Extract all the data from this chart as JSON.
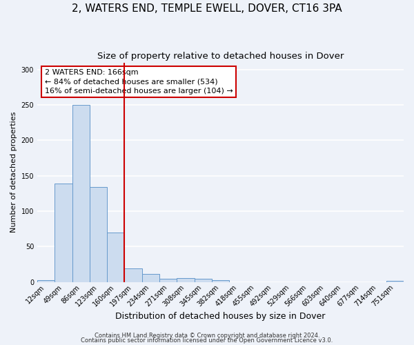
{
  "title": "2, WATERS END, TEMPLE EWELL, DOVER, CT16 3PA",
  "subtitle": "Size of property relative to detached houses in Dover",
  "xlabel": "Distribution of detached houses by size in Dover",
  "ylabel": "Number of detached properties",
  "bin_labels": [
    "12sqm",
    "49sqm",
    "86sqm",
    "123sqm",
    "160sqm",
    "197sqm",
    "234sqm",
    "271sqm",
    "308sqm",
    "345sqm",
    "382sqm",
    "418sqm",
    "455sqm",
    "492sqm",
    "529sqm",
    "566sqm",
    "603sqm",
    "640sqm",
    "677sqm",
    "714sqm",
    "751sqm"
  ],
  "bar_values": [
    3,
    139,
    250,
    134,
    70,
    19,
    11,
    5,
    6,
    5,
    3,
    0,
    0,
    0,
    0,
    0,
    0,
    0,
    0,
    0,
    2
  ],
  "bar_color": "#ccdcef",
  "bar_edgecolor": "#6699cc",
  "vline_color": "#cc0000",
  "vline_x_data": 4.5,
  "annotation_line1": "2 WATERS END: 166sqm",
  "annotation_line2": "← 84% of detached houses are smaller (534)",
  "annotation_line3": "16% of semi-detached houses are larger (104) →",
  "annotation_box_edgecolor": "#cc0000",
  "annotation_box_facecolor": "white",
  "ylim": [
    0,
    310
  ],
  "yticks": [
    0,
    50,
    100,
    150,
    200,
    250,
    300
  ],
  "footer1": "Contains HM Land Registry data © Crown copyright and database right 2024.",
  "footer2": "Contains public sector information licensed under the Open Government Licence v3.0.",
  "background_color": "#eef2f9",
  "grid_color": "#ffffff",
  "title_fontsize": 11,
  "subtitle_fontsize": 9.5,
  "xlabel_fontsize": 9,
  "ylabel_fontsize": 8,
  "tick_fontsize": 7,
  "annotation_fontsize": 8,
  "footer_fontsize": 6
}
